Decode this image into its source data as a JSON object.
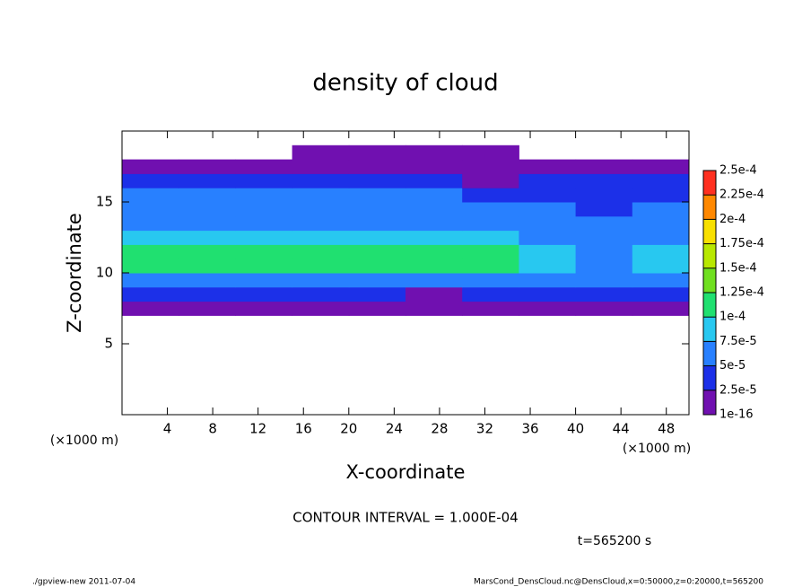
{
  "chart_data": {
    "type": "heatmap",
    "title": "density of cloud",
    "x_label": "X-coordinate",
    "y_label": "Z-coordinate",
    "x_unit": "(×1000 m)",
    "y_unit": "(×1000 m)",
    "annotation": "CONTOUR INTERVAL = 1.000E-04",
    "time_label": "t=565200 s",
    "footer_left": "./gpview-new   2011-07-04",
    "footer_right": "MarsCond_DensCloud.nc@DensCloud,x=0:50000,z=0:20000,t=565200",
    "xlim": [
      0,
      50
    ],
    "ylim": [
      0,
      20
    ],
    "xticks": [
      4,
      8,
      12,
      16,
      20,
      24,
      28,
      32,
      36,
      40,
      44,
      48
    ],
    "yticks": [
      5,
      10,
      15
    ],
    "xbins": [
      0,
      5,
      10,
      15,
      20,
      25,
      30,
      35,
      40,
      45,
      50
    ],
    "zbins": [
      0,
      1,
      2,
      3,
      4,
      5,
      6,
      7,
      8,
      9,
      10,
      11,
      12,
      13,
      14,
      15,
      16,
      17,
      18,
      19,
      20
    ],
    "values": [
      [
        0,
        0,
        0,
        0,
        0,
        0,
        0,
        0,
        0,
        0
      ],
      [
        0,
        0,
        0,
        0,
        0,
        0,
        0,
        0,
        0,
        0
      ],
      [
        0,
        0,
        0,
        0,
        0,
        0,
        0,
        0,
        0,
        0
      ],
      [
        0,
        0,
        0,
        0,
        0,
        0,
        0,
        0,
        0,
        0
      ],
      [
        0,
        0,
        0,
        0,
        0,
        0,
        0,
        0,
        0,
        0
      ],
      [
        0,
        0,
        0,
        0,
        0,
        0,
        0,
        0,
        0,
        0
      ],
      [
        0,
        0,
        0,
        0,
        0,
        0,
        0,
        0,
        0,
        0
      ],
      [
        1e-05,
        1e-05,
        1e-05,
        1e-05,
        1e-05,
        1e-05,
        1e-05,
        1e-05,
        1e-05,
        1e-05
      ],
      [
        3e-05,
        3e-05,
        3e-05,
        3e-05,
        3e-05,
        2e-05,
        3e-05,
        3e-05,
        3e-05,
        3e-05
      ],
      [
        7e-05,
        7e-05,
        7e-05,
        7e-05,
        7e-05,
        6e-05,
        7e-05,
        6e-05,
        5e-05,
        6e-05
      ],
      [
        0.00011,
        0.00011,
        0.00011,
        0.00011,
        0.00011,
        0.00011,
        0.00011,
        8e-05,
        6e-05,
        8e-05
      ],
      [
        0.00011,
        0.00011,
        0.00011,
        0.00011,
        0.00012,
        0.00011,
        0.00011,
        9e-05,
        6e-05,
        9e-05
      ],
      [
        8e-05,
        8e-05,
        8e-05,
        9e-05,
        9e-05,
        9e-05,
        8e-05,
        7e-05,
        5e-05,
        6e-05
      ],
      [
        6e-05,
        6e-05,
        6e-05,
        6e-05,
        7e-05,
        6e-05,
        6e-05,
        5e-05,
        5e-05,
        5e-05
      ],
      [
        5e-05,
        5e-05,
        5e-05,
        5e-05,
        5e-05,
        5e-05,
        5e-05,
        5e-05,
        4e-05,
        5e-05
      ],
      [
        5e-05,
        5e-05,
        5e-05,
        5e-05,
        5e-05,
        5e-05,
        4e-05,
        4e-05,
        4e-05,
        4e-05
      ],
      [
        3e-05,
        3e-05,
        3e-05,
        3e-05,
        3e-05,
        3e-05,
        2e-05,
        3e-05,
        3e-05,
        3e-05
      ],
      [
        1e-05,
        1e-05,
        1e-05,
        1e-05,
        1e-05,
        1e-05,
        1e-05,
        1e-05,
        1e-05,
        1e-05
      ],
      [
        0,
        0,
        0,
        1e-05,
        1e-05,
        1e-05,
        1e-05,
        0,
        0,
        0
      ],
      [
        0,
        0,
        0,
        0,
        0,
        0,
        0,
        0,
        0,
        0
      ]
    ],
    "levels": [
      {
        "value": 1e-16,
        "label": "1e-16"
      },
      {
        "value": 2.5e-05,
        "label": "2.5e-5"
      },
      {
        "value": 5e-05,
        "label": "5e-5"
      },
      {
        "value": 7.5e-05,
        "label": "7.5e-5"
      },
      {
        "value": 0.0001,
        "label": "1e-4"
      },
      {
        "value": 0.000125,
        "label": "1.25e-4"
      },
      {
        "value": 0.00015,
        "label": "1.5e-4"
      },
      {
        "value": 0.000175,
        "label": "1.75e-4"
      },
      {
        "value": 0.0002,
        "label": "2e-4"
      },
      {
        "value": 0.000225,
        "label": "2.25e-4"
      },
      {
        "value": 0.00025,
        "label": "2.5e-4"
      }
    ],
    "colors": [
      "#7010b0",
      "#1c30e8",
      "#2880ff",
      "#28c8f0",
      "#20e070",
      "#70e020",
      "#b8e800",
      "#f8e000",
      "#ff8800",
      "#ff3020"
    ]
  }
}
